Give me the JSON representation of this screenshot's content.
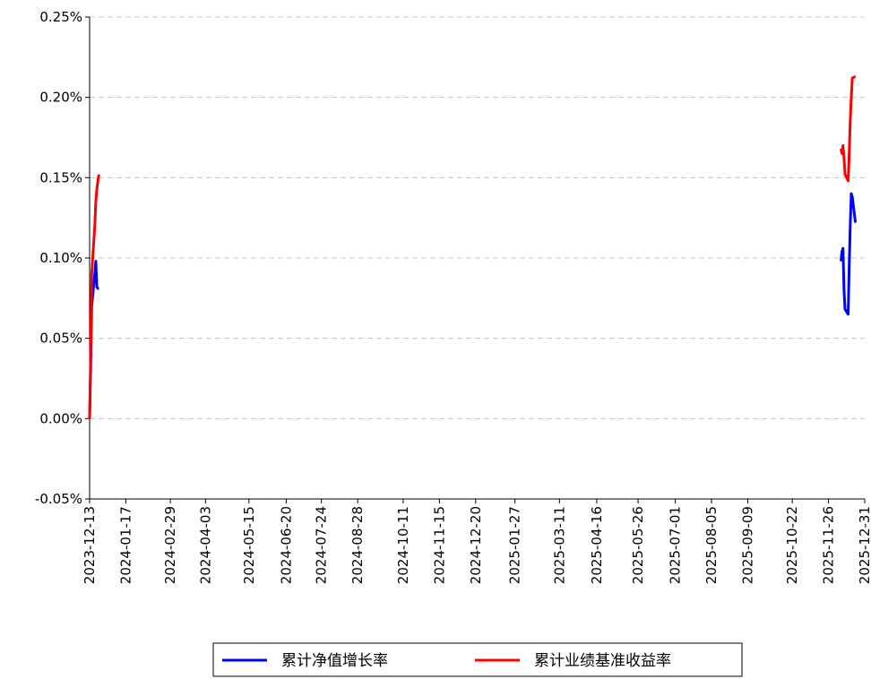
{
  "chart_data": {
    "type": "line",
    "x": [
      "2023-12-13",
      "2023-12-14",
      "2023-12-15",
      "2023-12-18",
      "2023-12-19",
      "2023-12-20",
      "2023-12-21",
      "2023-12-22",
      "2023-12-25",
      "2025-12-08",
      "2025-12-09",
      "2025-12-10",
      "2025-12-11",
      "2025-12-12",
      "2025-12-15",
      "2025-12-16",
      "2025-12-17",
      "2025-12-18",
      "2025-12-19",
      "2025-12-22"
    ],
    "series": [
      {
        "name": "累计净值增长率",
        "color": "#0000ff",
        "values": [
          0,
          0.03,
          0.07,
          0.09,
          0.098,
          0.082,
          0.081,
          0.081,
          null,
          0.098,
          0.104,
          0.106,
          0.08,
          0.068,
          0.065,
          0.095,
          0.12,
          0.14,
          0.138,
          0.122
        ]
      },
      {
        "name": "累计业绩基准收益率",
        "color": "#ff0000",
        "values": [
          0,
          0.04,
          0.09,
          0.12,
          0.135,
          0.143,
          0.148,
          0.152,
          null,
          0.168,
          0.165,
          0.17,
          0.162,
          0.152,
          0.148,
          0.165,
          0.185,
          0.2,
          0.212,
          0.213
        ]
      }
    ],
    "xlim": [
      "2023-12-13",
      "2025-12-31"
    ],
    "xticks": [
      "2023-12-13",
      "2024-01-17",
      "2024-02-29",
      "2024-04-03",
      "2024-05-15",
      "2024-06-20",
      "2024-07-24",
      "2024-08-28",
      "2024-10-11",
      "2024-11-15",
      "2024-12-20",
      "2025-01-27",
      "2025-03-11",
      "2025-04-16",
      "2025-05-26",
      "2025-07-01",
      "2025-08-05",
      "2025-09-09",
      "2025-10-22",
      "2025-11-26",
      "2025-12-31"
    ],
    "ylim": [
      -0.05,
      0.25
    ],
    "yticks": [
      {
        "value": -0.05,
        "label": "-0.05%"
      },
      {
        "value": 0,
        "label": "0.00%"
      },
      {
        "value": 0.05,
        "label": "0.05%"
      },
      {
        "value": 0.1,
        "label": "0.10%"
      },
      {
        "value": 0.15,
        "label": "0.15%"
      },
      {
        "value": 0.2,
        "label": "0.20%"
      },
      {
        "value": 0.25,
        "label": "0.25%"
      }
    ],
    "grid": true,
    "legend": "bottom"
  }
}
